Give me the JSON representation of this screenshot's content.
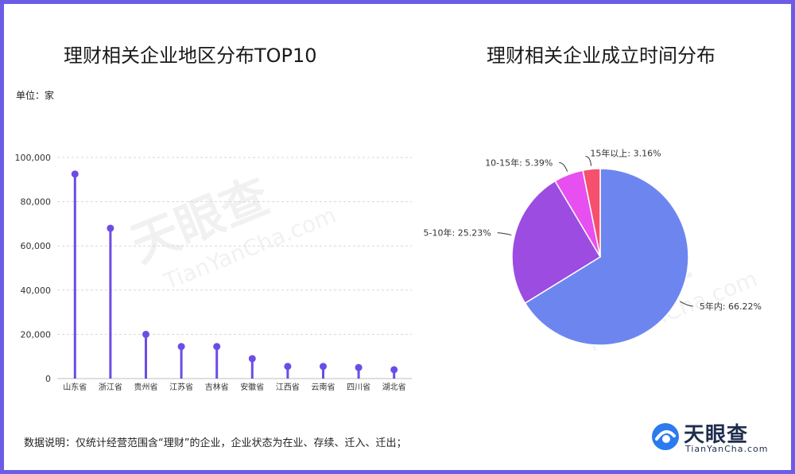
{
  "brand": {
    "name_cn": "天眼查",
    "name_en": "TianYanCha.com",
    "accent": "#6c5ce7"
  },
  "unit_label": "单位：家",
  "note": "数据说明：仅统计经营范围含“理财”的企业，企业状态为在业、存续、迁入、迁出；",
  "chart_data": [
    {
      "type": "bar",
      "title": "理财相关企业地区分布TOP10",
      "categories": [
        "山东省",
        "浙江省",
        "贵州省",
        "江苏省",
        "吉林省",
        "安徽省",
        "江西省",
        "云南省",
        "四川省",
        "湖北省"
      ],
      "values": [
        92500,
        68000,
        20000,
        14500,
        14500,
        9000,
        5500,
        5500,
        5000,
        4000
      ],
      "yticks": [
        "0",
        "20,000",
        "40,000",
        "60,000",
        "80,000",
        "100,000"
      ],
      "ylim": [
        0,
        100000
      ],
      "grid": true,
      "color": "#6c4ce6"
    },
    {
      "type": "pie",
      "title": "理财相关企业成立时间分布",
      "slices": [
        {
          "label": "5年内: 66.22%",
          "value": 66.22,
          "color": "#6d86ef"
        },
        {
          "label": "5-10年: 25.23%",
          "value": 25.23,
          "color": "#9c4ce0"
        },
        {
          "label": "10-15年: 5.39%",
          "value": 5.39,
          "color": "#e84ff0"
        },
        {
          "label": "15年以上: 3.16%",
          "value": 3.16,
          "color": "#f5506e"
        }
      ]
    }
  ]
}
